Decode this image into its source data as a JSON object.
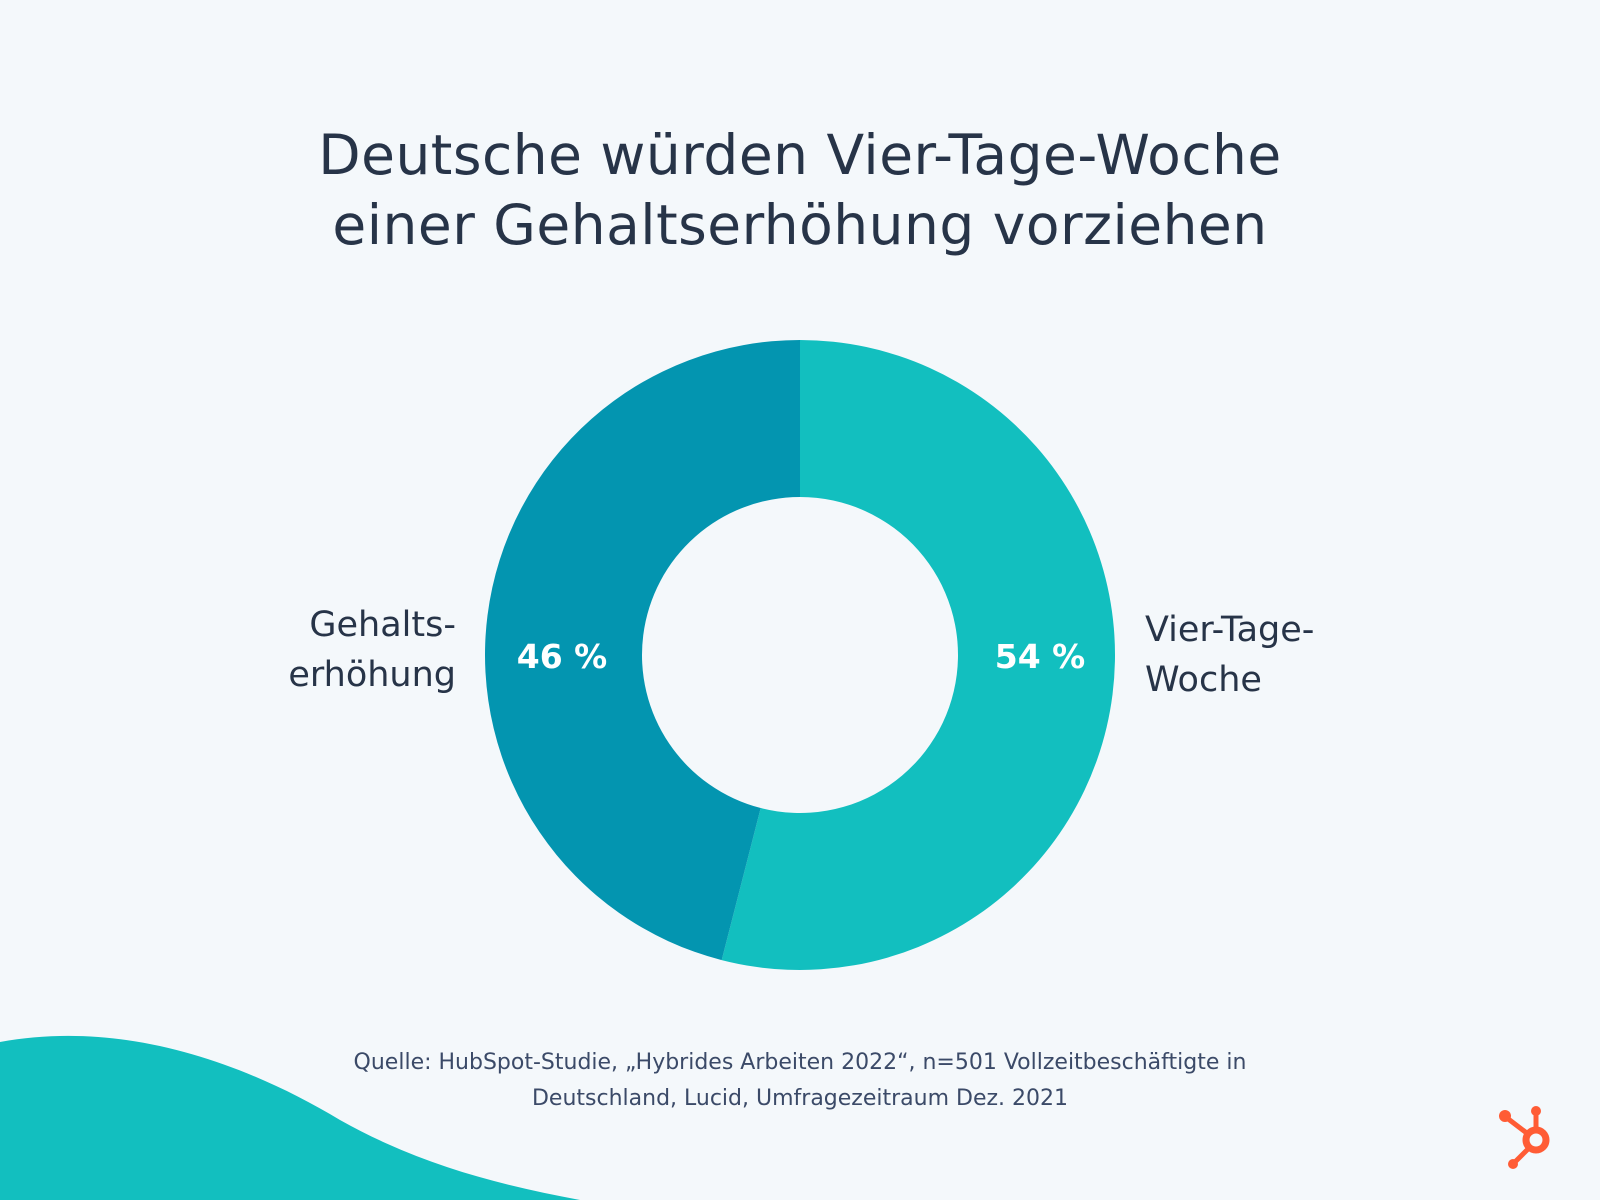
{
  "colors": {
    "background": "#f4f8fb",
    "text": "#273448",
    "teal_light": "#12bfbf",
    "teal_dark": "#0395b0",
    "wave": "#12bfbf",
    "logo": "#ff5c35"
  },
  "title": {
    "line1": "Deutsche würden Vier-Tage-Woche",
    "line2": "einer Gehaltserhöhung vorziehen"
  },
  "chart_data": {
    "type": "pie",
    "donut": true,
    "slices": [
      {
        "label": "Vier-Tage-Woche",
        "value": 54,
        "value_label": "54 %",
        "color": "#12bfbf"
      },
      {
        "label": "Gehaltserhöhung",
        "value": 46,
        "value_label": "46 %",
        "color": "#0395b0"
      }
    ],
    "labels_outside": {
      "right": [
        "Vier-Tage-",
        "Woche"
      ],
      "left": [
        "Gehalts-",
        "erhöhung"
      ]
    }
  },
  "source": {
    "line1": "Quelle: HubSpot-Studie, „Hybrides Arbeiten 2022“, n=501 Vollzeitbeschäftigte in",
    "line2": "Deutschland, Lucid, Umfragezeitraum Dez. 2021"
  },
  "logo": {
    "icon": "hubspot-sprocket-icon"
  }
}
